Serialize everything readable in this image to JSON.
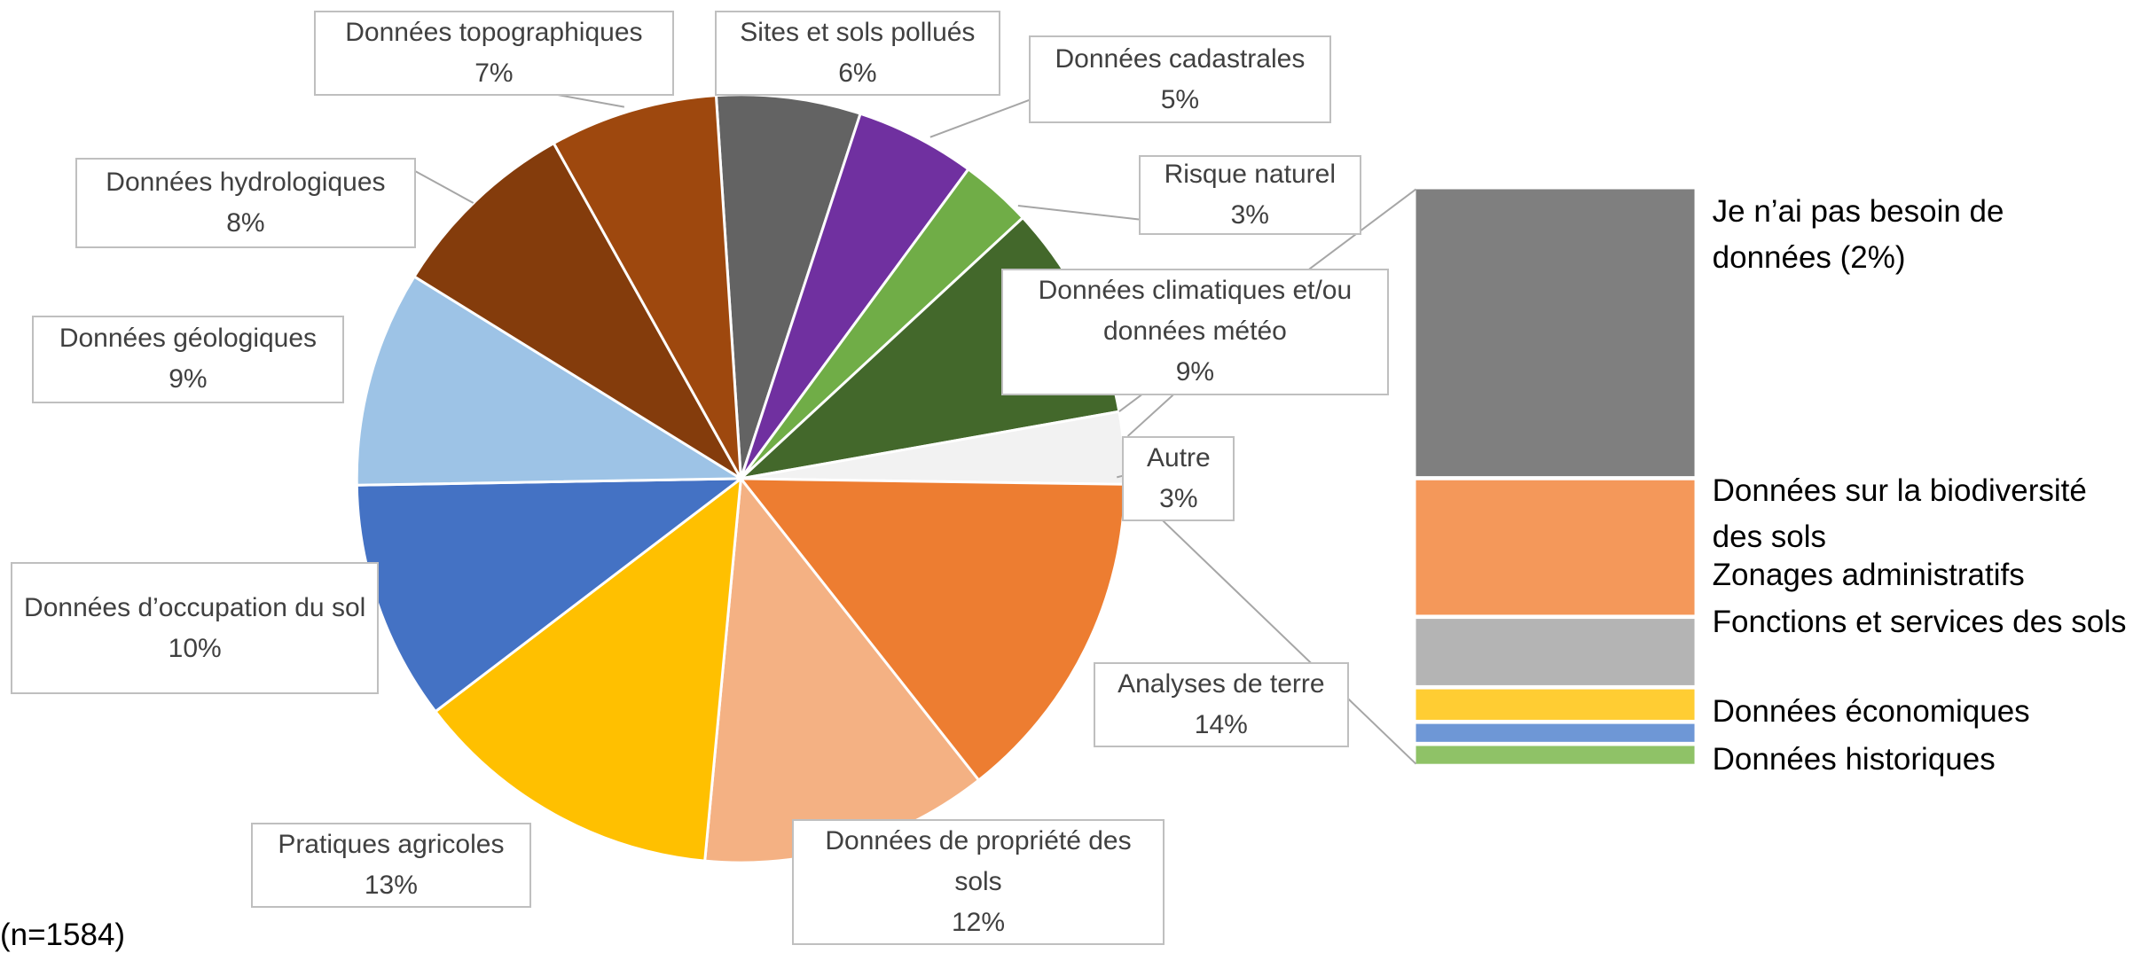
{
  "chart_data": {
    "type": "pie-of-bar",
    "categories": [
      "Sites et sols pollués",
      "Données cadastrales",
      "Risque naturel",
      "Données climatiques et/ou données météo",
      "Autre",
      "Analyses de terre",
      "Données de propriété des sols",
      "Pratiques agricoles",
      "Données d’occupation du sol",
      "Données géologiques",
      "Données hydrologiques",
      "Données topographiques"
    ],
    "values": [
      6,
      5,
      3,
      9,
      3,
      14,
      12,
      13,
      10,
      9,
      8,
      7
    ],
    "value_labels": [
      "6%",
      "5%",
      "3%",
      "9%",
      "3%",
      "14%",
      "12%",
      "13%",
      "10%",
      "9%",
      "8%",
      "7%"
    ],
    "colors": [
      "#636363",
      "#7030a0",
      "#70ad47",
      "#43682b",
      "#f2f2f2",
      "#ed7d31",
      "#f4b183",
      "#ffc000",
      "#4472c4",
      "#9dc3e6",
      "#843c0c",
      "#9e480e"
    ],
    "bar": {
      "categories": [
        "Je n’ai pas besoin de données (2%)",
        "Données sur la biodiversité des sols",
        "Zonages administratifs",
        "Fonctions et services des sols",
        "Données économiques",
        "Données historiques"
      ],
      "values": [
        1.6,
        0.75,
        0.37,
        0.17,
        0.1,
        0.1
      ],
      "colors": [
        "#7f7f7f",
        "#f4985a",
        "#b4b4b4",
        "#ffcd33",
        "#6e97d6",
        "#8fc267"
      ]
    },
    "note": "(n=1584)"
  }
}
